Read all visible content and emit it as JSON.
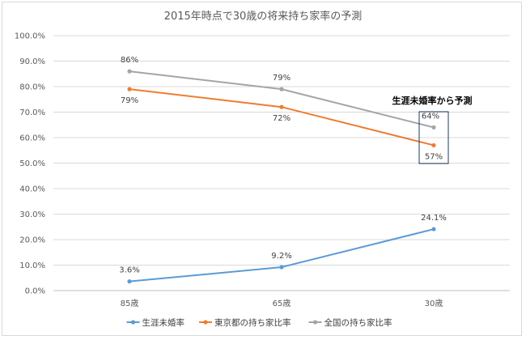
{
  "chart_data": {
    "type": "line",
    "title": "2015年時点で30歳の将来持ち家率の予測",
    "categories": [
      "85歳",
      "65歳",
      "30歳"
    ],
    "ylim": [
      0,
      100
    ],
    "y_tick_labels": [
      "0.0%",
      "10.0%",
      "20.0%",
      "30.0%",
      "40.0%",
      "50.0%",
      "60.0%",
      "70.0%",
      "80.0%",
      "90.0%",
      "100.0%"
    ],
    "grid": true,
    "legend_position": "bottom",
    "series": [
      {
        "name": "生涯未婚率",
        "color": "#5b9bd5",
        "values": [
          3.6,
          9.2,
          24.1
        ],
        "labels": [
          "3.6%",
          "9.2%",
          "24.1%"
        ]
      },
      {
        "name": "東京都の持ち家比率",
        "color": "#ed7d31",
        "values": [
          79,
          72,
          57
        ],
        "labels": [
          "79%",
          "72%",
          "57%"
        ]
      },
      {
        "name": "全国の持ち家比率",
        "color": "#a5a5a5",
        "values": [
          86,
          79,
          64
        ],
        "labels": [
          "86%",
          "79%",
          "64%"
        ]
      }
    ],
    "annotation": {
      "text": "生涯未婚率から予測",
      "category_index": 2
    }
  }
}
